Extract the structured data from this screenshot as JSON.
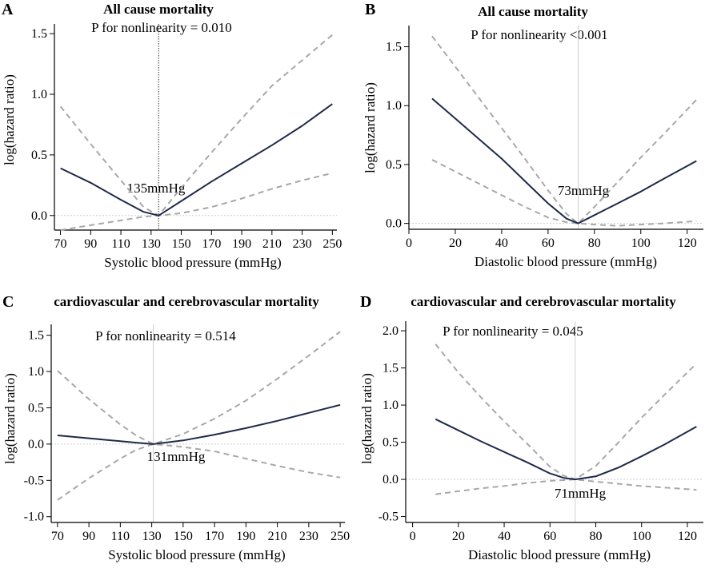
{
  "chart_data": [
    {
      "type": "line",
      "panel_label": "A",
      "title": "All cause mortality",
      "annotation": "P for nonlinearity = 0.010",
      "knot_label": "135mmHg",
      "knot_x": 135,
      "xlabel": "Systolic blood pressure (mmHg)",
      "ylabel": "log(hazard ratio)",
      "xlim": [
        66,
        253
      ],
      "ylim": [
        -0.12,
        1.58
      ],
      "xticks": [
        70,
        90,
        110,
        130,
        150,
        170,
        190,
        210,
        230,
        250
      ],
      "yticks": [
        0.0,
        0.5,
        1.0,
        1.5
      ],
      "ytick_labels": [
        "0.0",
        "0.5",
        "1.0",
        "1.5"
      ],
      "series": [
        {
          "name": "estimate",
          "x": [
            70,
            90,
            110,
            125,
            135,
            150,
            170,
            190,
            210,
            230,
            250
          ],
          "y": [
            0.39,
            0.27,
            0.13,
            0.03,
            0.0,
            0.12,
            0.28,
            0.43,
            0.58,
            0.74,
            0.92
          ]
        },
        {
          "name": "upper 95% CI",
          "x": [
            70,
            90,
            110,
            125,
            135,
            150,
            170,
            190,
            210,
            230,
            250
          ],
          "y": [
            0.9,
            0.59,
            0.29,
            0.07,
            0.0,
            0.23,
            0.52,
            0.8,
            1.07,
            1.28,
            1.49
          ]
        },
        {
          "name": "lower 95% CI",
          "x": [
            70,
            90,
            110,
            125,
            135,
            150,
            170,
            190,
            210,
            230,
            250
          ],
          "y": [
            -0.12,
            -0.08,
            -0.04,
            -0.01,
            0.0,
            0.02,
            0.07,
            0.14,
            0.22,
            0.29,
            0.35
          ]
        }
      ]
    },
    {
      "type": "line",
      "panel_label": "B",
      "title": "All cause mortality",
      "annotation": "P for nonlinearity <0.001",
      "knot_label": "73mmHg",
      "knot_x": 73,
      "xlabel": "Diastolic blood pressure (mmHg)",
      "ylabel": "log(hazard ratio)",
      "xlim": [
        0,
        127
      ],
      "ylim": [
        -0.05,
        1.68
      ],
      "xticks": [
        0,
        20,
        40,
        60,
        80,
        100,
        120
      ],
      "yticks": [
        0.0,
        0.5,
        1.0,
        1.5
      ],
      "ytick_labels": [
        "0.0",
        "0.5",
        "1.0",
        "1.5"
      ],
      "series": [
        {
          "name": "estimate",
          "x": [
            10,
            20,
            30,
            40,
            50,
            60,
            68,
            73,
            80,
            90,
            100,
            110,
            124
          ],
          "y": [
            1.06,
            0.89,
            0.72,
            0.55,
            0.36,
            0.17,
            0.04,
            0.0,
            0.07,
            0.17,
            0.27,
            0.38,
            0.53
          ]
        },
        {
          "name": "upper 95% CI",
          "x": [
            10,
            20,
            30,
            40,
            50,
            60,
            68,
            73,
            80,
            90,
            100,
            110,
            124
          ],
          "y": [
            1.59,
            1.33,
            1.07,
            0.81,
            0.55,
            0.28,
            0.08,
            0.0,
            0.14,
            0.35,
            0.56,
            0.76,
            1.05
          ]
        },
        {
          "name": "lower 95% CI",
          "x": [
            10,
            20,
            30,
            40,
            50,
            60,
            68,
            73,
            80,
            90,
            100,
            110,
            124
          ],
          "y": [
            0.54,
            0.44,
            0.34,
            0.24,
            0.14,
            0.05,
            0.01,
            0.0,
            -0.01,
            -0.02,
            -0.01,
            0.0,
            0.02
          ]
        }
      ]
    },
    {
      "type": "line",
      "panel_label": "C",
      "title": "cardiovascular and cerebrovascular mortality",
      "annotation": "P for nonlinearity = 0.514",
      "knot_label": "131mmHg",
      "knot_x": 131,
      "xlabel": "Systolic blood pressure (mmHg)",
      "ylabel": "log(hazard ratio)",
      "xlim": [
        66,
        253
      ],
      "ylim": [
        -1.08,
        1.65
      ],
      "xticks": [
        70,
        90,
        110,
        130,
        150,
        170,
        190,
        210,
        230,
        250
      ],
      "yticks": [
        -1.0,
        -0.5,
        0.0,
        0.5,
        1.0,
        1.5
      ],
      "ytick_labels": [
        "-1.0",
        "-0.5",
        "0.0",
        "0.5",
        "1.0",
        "1.5"
      ],
      "series": [
        {
          "name": "estimate",
          "x": [
            70,
            90,
            110,
            120,
            131,
            150,
            170,
            190,
            210,
            230,
            250
          ],
          "y": [
            0.12,
            0.08,
            0.04,
            0.02,
            0.0,
            0.05,
            0.13,
            0.22,
            0.32,
            0.43,
            0.54
          ]
        },
        {
          "name": "upper 95% CI",
          "x": [
            70,
            90,
            110,
            120,
            131,
            150,
            170,
            190,
            210,
            230,
            250
          ],
          "y": [
            1.01,
            0.62,
            0.27,
            0.12,
            0.0,
            0.14,
            0.35,
            0.6,
            0.9,
            1.22,
            1.55
          ]
        },
        {
          "name": "lower 95% CI",
          "x": [
            70,
            90,
            110,
            120,
            131,
            150,
            170,
            190,
            210,
            230,
            250
          ],
          "y": [
            -0.77,
            -0.47,
            -0.2,
            -0.08,
            0.0,
            -0.04,
            -0.1,
            -0.2,
            -0.3,
            -0.39,
            -0.46
          ]
        }
      ]
    },
    {
      "type": "line",
      "panel_label": "D",
      "title": "cardiovascular and cerebrovascular mortality",
      "annotation": "P for nonlinearity = 0.045",
      "knot_label": "71mmHg",
      "knot_x": 71,
      "xlabel": "Diastolic blood pressure (mmHg)",
      "ylabel": "log(hazard ratio)",
      "xlim": [
        -3,
        127
      ],
      "ylim": [
        -0.58,
        2.13
      ],
      "xticks": [
        0,
        20,
        40,
        60,
        80,
        100,
        120
      ],
      "yticks": [
        -0.5,
        0.0,
        0.5,
        1.0,
        1.5,
        2.0
      ],
      "ytick_labels": [
        "-0.5",
        "0.0",
        "0.5",
        "1.0",
        "1.5",
        "2.0"
      ],
      "series": [
        {
          "name": "estimate",
          "x": [
            10,
            20,
            30,
            40,
            50,
            60,
            66,
            71,
            80,
            90,
            100,
            110,
            124
          ],
          "y": [
            0.81,
            0.66,
            0.51,
            0.37,
            0.23,
            0.08,
            0.02,
            0.0,
            0.04,
            0.16,
            0.31,
            0.47,
            0.71
          ]
        },
        {
          "name": "upper 95% CI",
          "x": [
            10,
            20,
            30,
            40,
            50,
            60,
            66,
            71,
            80,
            90,
            100,
            110,
            124
          ],
          "y": [
            1.82,
            1.44,
            1.1,
            0.78,
            0.48,
            0.17,
            0.05,
            0.0,
            0.18,
            0.5,
            0.83,
            1.14,
            1.56
          ]
        },
        {
          "name": "lower 95% CI",
          "x": [
            10,
            20,
            30,
            40,
            50,
            60,
            66,
            71,
            80,
            90,
            100,
            110,
            124
          ],
          "y": [
            -0.2,
            -0.16,
            -0.12,
            -0.09,
            -0.05,
            -0.02,
            -0.01,
            0.0,
            -0.03,
            -0.06,
            -0.09,
            -0.11,
            -0.14
          ]
        }
      ]
    }
  ]
}
